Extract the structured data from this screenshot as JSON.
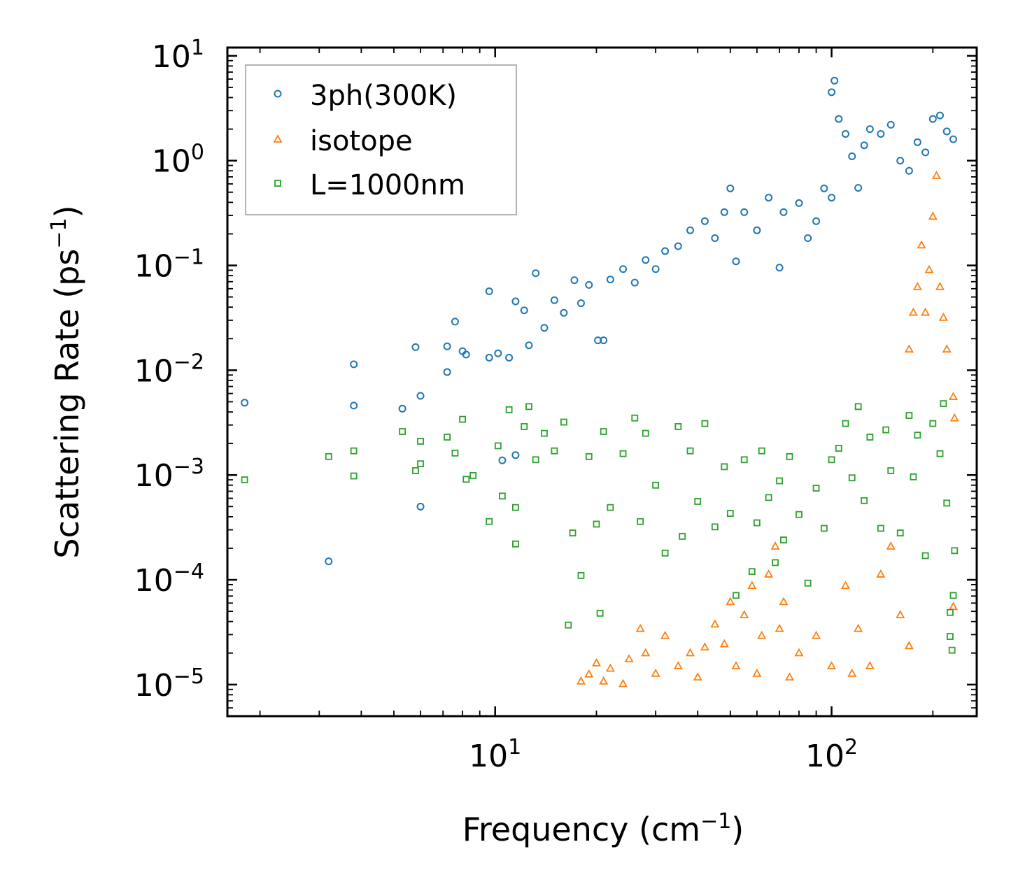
{
  "chart_data": {
    "type": "scatter",
    "title": "",
    "xlabel": "Frequency (cm",
    "xlabel_sup": "−1",
    "xlabel_end": ")",
    "ylabel": "Scattering Rate (ps",
    "ylabel_sup": "−1",
    "ylabel_end": ")",
    "xscale": "log",
    "yscale": "log",
    "xlim": [
      1.6,
      270
    ],
    "ylim": [
      5e-06,
      12
    ],
    "x_ticks": [
      {
        "value": 10,
        "base": "10",
        "exp": "1"
      },
      {
        "value": 100,
        "base": "10",
        "exp": "2"
      }
    ],
    "y_ticks": [
      {
        "value": 10,
        "base": "10",
        "exp": "1"
      },
      {
        "value": 1,
        "base": "10",
        "exp": "0"
      },
      {
        "value": 0.1,
        "base": "10",
        "exp": "−1"
      },
      {
        "value": 0.01,
        "base": "10",
        "exp": "−2"
      },
      {
        "value": 0.001,
        "base": "10",
        "exp": "−3"
      },
      {
        "value": 0.0001,
        "base": "10",
        "exp": "−4"
      },
      {
        "value": 1e-05,
        "base": "10",
        "exp": "−5"
      }
    ],
    "legend_position": "top-left",
    "series": [
      {
        "name": "3ph(300K)",
        "marker": "circle",
        "color": "#1f77b4",
        "points": [
          [
            1.8,
            0.0049
          ],
          [
            3.2,
            0.00015
          ],
          [
            3.8,
            0.0114
          ],
          [
            3.8,
            0.0046
          ],
          [
            5.3,
            0.0043
          ],
          [
            5.8,
            0.0166
          ],
          [
            6.0,
            0.0057
          ],
          [
            6.0,
            0.0005
          ],
          [
            7.2,
            0.0169
          ],
          [
            7.2,
            0.0096
          ],
          [
            7.6,
            0.0291
          ],
          [
            8.0,
            0.0152
          ],
          [
            8.2,
            0.0141
          ],
          [
            9.6,
            0.0132
          ],
          [
            9.6,
            0.0567
          ],
          [
            10.2,
            0.0145
          ],
          [
            10.5,
            0.00138
          ],
          [
            11.0,
            0.0132
          ],
          [
            11.5,
            0.0454
          ],
          [
            11.5,
            0.00155
          ],
          [
            12.2,
            0.0373
          ],
          [
            12.6,
            0.0173
          ],
          [
            13.2,
            0.0843
          ],
          [
            14.0,
            0.0254
          ],
          [
            15.0,
            0.0466
          ],
          [
            16.0,
            0.0353
          ],
          [
            17.2,
            0.0723
          ],
          [
            18.0,
            0.0436
          ],
          [
            19.0,
            0.0652
          ],
          [
            20.2,
            0.0193
          ],
          [
            21.0,
            0.0193
          ],
          [
            22.0,
            0.0734
          ],
          [
            24.0,
            0.0923
          ],
          [
            26.0,
            0.0686
          ],
          [
            28.0,
            0.1127
          ],
          [
            30.0,
            0.0923
          ],
          [
            32.0,
            0.1372
          ],
          [
            35.0,
            0.1526
          ],
          [
            38.0,
            0.2164
          ],
          [
            42.0,
            0.2643
          ],
          [
            45.0,
            0.1823
          ],
          [
            48.0,
            0.3223
          ],
          [
            50.0,
            0.5431
          ],
          [
            52.0,
            0.1093
          ],
          [
            55.0,
            0.3223
          ],
          [
            60.0,
            0.2164
          ],
          [
            65.0,
            0.4437
          ],
          [
            70.0,
            0.0953
          ],
          [
            72.0,
            0.3223
          ],
          [
            80.0,
            0.3934
          ],
          [
            85.0,
            0.1823
          ],
          [
            90.0,
            0.2643
          ],
          [
            95.0,
            0.5431
          ],
          [
            100.0,
            0.4437
          ],
          [
            100.0,
            4.5
          ],
          [
            102.0,
            5.8
          ],
          [
            105.0,
            2.5
          ],
          [
            110.0,
            1.8
          ],
          [
            115.0,
            1.1
          ],
          [
            120.0,
            0.55
          ],
          [
            125.0,
            1.4
          ],
          [
            130.0,
            2.0
          ],
          [
            140.0,
            1.8
          ],
          [
            150.0,
            2.2
          ],
          [
            160.0,
            1.0
          ],
          [
            170.0,
            0.8
          ],
          [
            180.0,
            1.5
          ],
          [
            190.0,
            1.2
          ],
          [
            200.0,
            2.5
          ],
          [
            210.0,
            2.7
          ],
          [
            220.0,
            1.9
          ],
          [
            230.0,
            1.6
          ]
        ]
      },
      {
        "name": "isotope",
        "marker": "triangle",
        "color": "#ff7f0e",
        "points": [
          [
            18.0,
            1.08e-05
          ],
          [
            19.0,
            1.26e-05
          ],
          [
            20.0,
            1.61e-05
          ],
          [
            21.0,
            1.08e-05
          ],
          [
            22.0,
            1.43e-05
          ],
          [
            24.0,
            1.02e-05
          ],
          [
            25.0,
            1.76e-05
          ],
          [
            27.0,
            3.43e-05
          ],
          [
            28.0,
            2.01e-05
          ],
          [
            30.0,
            1.28e-05
          ],
          [
            32.0,
            2.94e-05
          ],
          [
            35.0,
            1.51e-05
          ],
          [
            38.0,
            2.01e-05
          ],
          [
            40.0,
            1.18e-05
          ],
          [
            42.0,
            2.28e-05
          ],
          [
            45.0,
            3.78e-05
          ],
          [
            48.0,
            2.45e-05
          ],
          [
            50.0,
            6.18e-05
          ],
          [
            52.0,
            1.51e-05
          ],
          [
            55.0,
            4.64e-05
          ],
          [
            58.0,
            8.82e-05
          ],
          [
            60.0,
            1.28e-05
          ],
          [
            62.0,
            2.94e-05
          ],
          [
            65.0,
            0.0001133
          ],
          [
            68.0,
            0.0002093
          ],
          [
            70.0,
            3.43e-05
          ],
          [
            72.0,
            6.18e-05
          ],
          [
            75.0,
            1.18e-05
          ],
          [
            80.0,
            2.01e-05
          ],
          [
            90.0,
            2.94e-05
          ],
          [
            100.0,
            1.51e-05
          ],
          [
            110.0,
            8.82e-05
          ],
          [
            115.0,
            1.28e-05
          ],
          [
            120.0,
            3.43e-05
          ],
          [
            130.0,
            1.51e-05
          ],
          [
            140.0,
            0.0001133
          ],
          [
            150.0,
            0.0002093
          ],
          [
            160.0,
            4.64e-05
          ],
          [
            170.0,
            2.35e-05
          ],
          [
            170.0,
            0.0159
          ],
          [
            175.0,
            0.0357
          ],
          [
            180.0,
            0.0628
          ],
          [
            185.0,
            0.1567
          ],
          [
            190.0,
            0.0357
          ],
          [
            195.0,
            0.0911
          ],
          [
            200.0,
            0.2945
          ],
          [
            205.0,
            0.7212
          ],
          [
            210.0,
            0.0628
          ],
          [
            215.0,
            0.0319
          ],
          [
            220.0,
            0.0159
          ],
          [
            230.0,
            5.56e-05
          ],
          [
            230.0,
            0.0056
          ],
          [
            232.0,
            0.0035
          ]
        ]
      },
      {
        "name": "L=1000nm",
        "marker": "square",
        "color": "#2ca02c",
        "points": [
          [
            1.8,
            0.0009
          ],
          [
            3.2,
            0.0015
          ],
          [
            3.8,
            0.0017
          ],
          [
            3.8,
            0.00098
          ],
          [
            5.3,
            0.0026
          ],
          [
            5.8,
            0.0011
          ],
          [
            6.0,
            0.0021
          ],
          [
            6.0,
            0.00128
          ],
          [
            7.2,
            0.0023
          ],
          [
            7.6,
            0.00162
          ],
          [
            8.0,
            0.0034
          ],
          [
            8.2,
            0.00091
          ],
          [
            8.6,
            0.00099
          ],
          [
            9.6,
            0.00036
          ],
          [
            10.2,
            0.0019
          ],
          [
            10.5,
            0.00063
          ],
          [
            11.0,
            0.0042
          ],
          [
            11.5,
            0.00022
          ],
          [
            11.5,
            0.00049
          ],
          [
            12.2,
            0.0029
          ],
          [
            12.6,
            0.0045
          ],
          [
            13.2,
            0.0014
          ],
          [
            14.0,
            0.0025
          ],
          [
            15.0,
            0.0017
          ],
          [
            16.0,
            0.0032
          ],
          [
            16.5,
            3.7e-05
          ],
          [
            17.0,
            0.00028
          ],
          [
            18.0,
            0.00011
          ],
          [
            19.0,
            0.0015
          ],
          [
            20.0,
            0.00034
          ],
          [
            20.5,
            4.8e-05
          ],
          [
            21.0,
            0.0026
          ],
          [
            22.0,
            0.00049
          ],
          [
            24.0,
            0.0016
          ],
          [
            26.0,
            0.0035
          ],
          [
            27.0,
            0.00036
          ],
          [
            28.0,
            0.0025
          ],
          [
            30.0,
            0.0008
          ],
          [
            32.0,
            0.00018
          ],
          [
            35.0,
            0.0029
          ],
          [
            36.0,
            0.00026
          ],
          [
            38.0,
            0.0017
          ],
          [
            40.0,
            0.00056
          ],
          [
            42.0,
            0.0031
          ],
          [
            45.0,
            0.00032
          ],
          [
            48.0,
            0.0012
          ],
          [
            50.0,
            0.00043
          ],
          [
            52.0,
            7.1e-05
          ],
          [
            55.0,
            0.0014
          ],
          [
            58.0,
            0.00012
          ],
          [
            60.0,
            0.00035
          ],
          [
            62.0,
            0.0017
          ],
          [
            65.0,
            0.00061
          ],
          [
            68.0,
            0.000146
          ],
          [
            70.0,
            0.00088
          ],
          [
            72.0,
            0.00024
          ],
          [
            75.0,
            0.0015
          ],
          [
            80.0,
            0.00042
          ],
          [
            85.0,
            9.3e-05
          ],
          [
            90.0,
            0.00075
          ],
          [
            95.0,
            0.00031
          ],
          [
            100.0,
            0.0014
          ],
          [
            105.0,
            0.0018
          ],
          [
            110.0,
            0.0031
          ],
          [
            115.0,
            0.00094
          ],
          [
            120.0,
            0.0045
          ],
          [
            125.0,
            0.00057
          ],
          [
            130.0,
            0.0023
          ],
          [
            140.0,
            0.00031
          ],
          [
            145.0,
            0.0027
          ],
          [
            150.0,
            0.0011
          ],
          [
            160.0,
            0.00028
          ],
          [
            170.0,
            0.0037
          ],
          [
            175.0,
            0.00096
          ],
          [
            180.0,
            0.0024
          ],
          [
            190.0,
            0.00017
          ],
          [
            200.0,
            0.0031
          ],
          [
            210.0,
            0.0016
          ],
          [
            215.0,
            0.0048
          ],
          [
            220.0,
            0.00054
          ],
          [
            225.0,
            2.88e-05
          ],
          [
            225.0,
            4.88e-05
          ],
          [
            228.0,
            2.13e-05
          ],
          [
            230.0,
            7.09e-05
          ],
          [
            232.0,
            0.00019
          ]
        ]
      }
    ]
  }
}
